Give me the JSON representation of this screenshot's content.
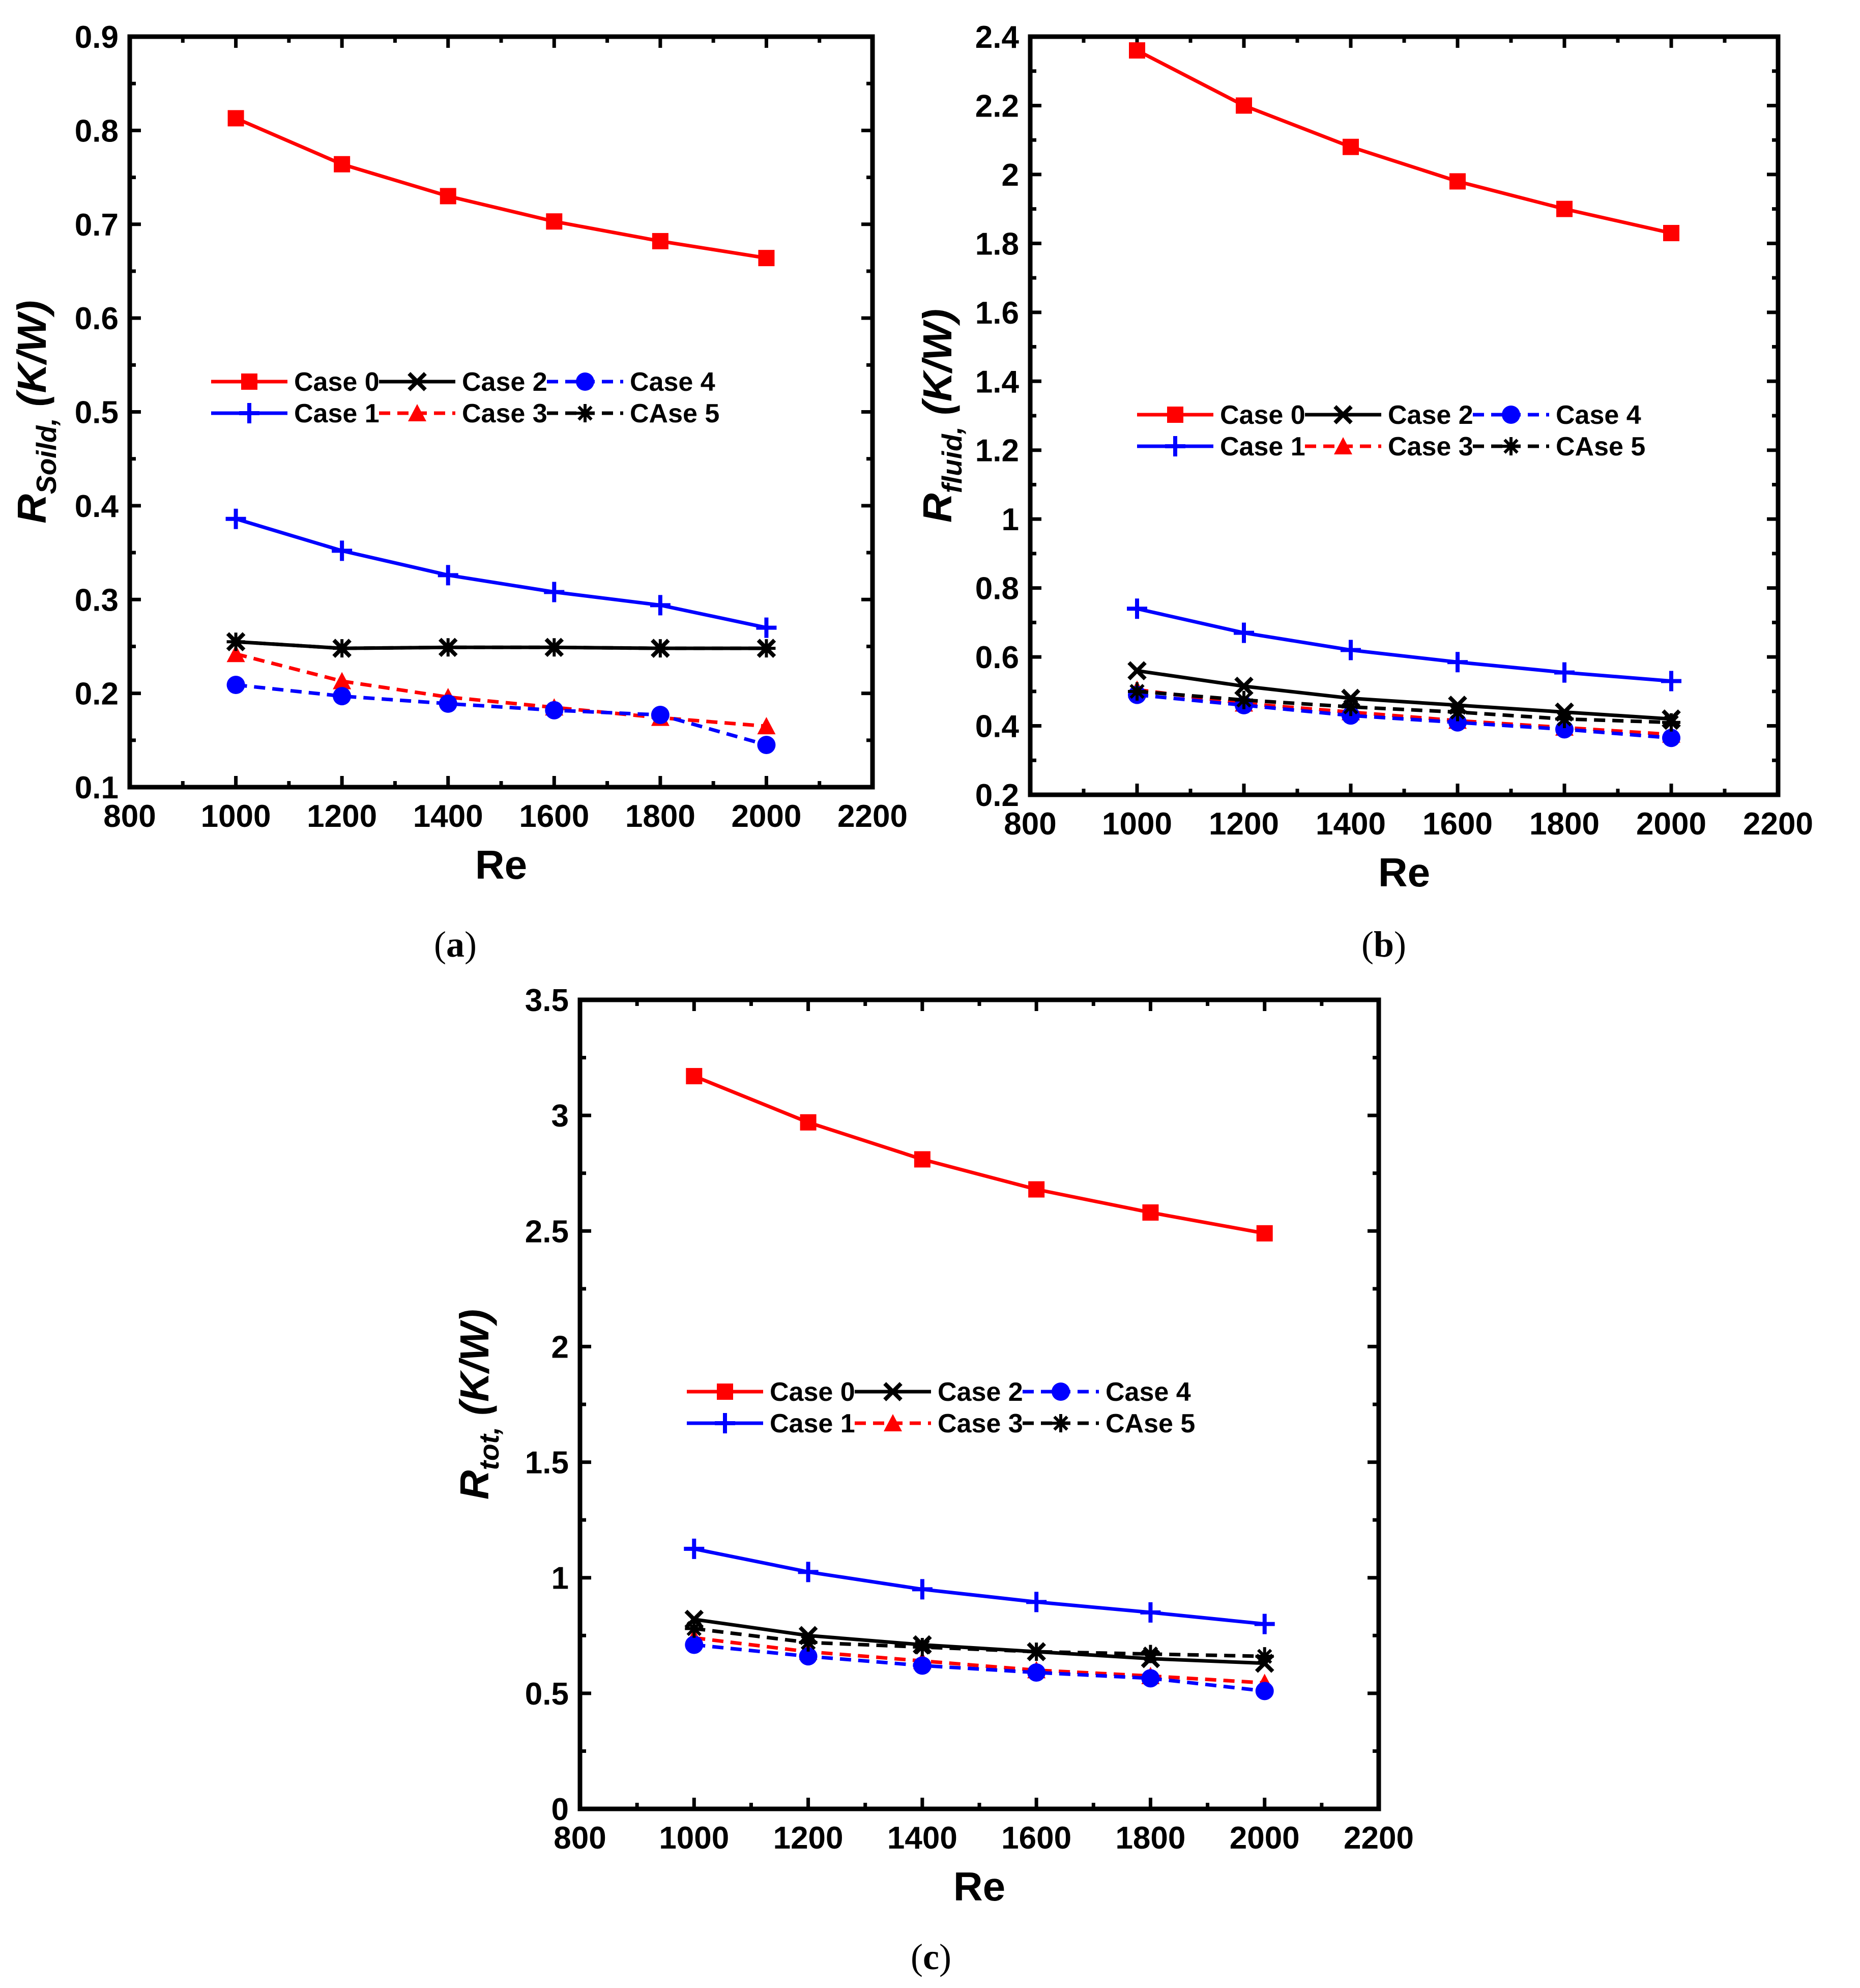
{
  "chart_data": [
    {
      "type": "line",
      "panel": "(a)",
      "caption_letter": "a",
      "ylabel_main": "R",
      "ylabel_sub": "Soild,",
      "ylabel_unit": " (K/W)",
      "xlabel": "Re",
      "xlim": [
        800,
        2200
      ],
      "ylim": [
        0.1,
        0.9
      ],
      "xticks": [
        800,
        1000,
        1200,
        1400,
        1600,
        1800,
        2000,
        2200
      ],
      "yticks": [
        0.1,
        0.2,
        0.3,
        0.4,
        0.5,
        0.6,
        0.7,
        0.8,
        0.9
      ],
      "ytick_labels": [
        "0.1",
        "0.2",
        "0.3",
        "0.4",
        "0.5",
        "0.6",
        "0.7",
        "0.8",
        "0.9"
      ],
      "x": [
        1000,
        1200,
        1400,
        1600,
        1800,
        2000
      ],
      "series": [
        {
          "name": "Case 0",
          "values": [
            0.813,
            0.764,
            0.73,
            0.703,
            0.682,
            0.664
          ]
        },
        {
          "name": "Case 1",
          "values": [
            0.386,
            0.352,
            0.326,
            0.308,
            0.294,
            0.27
          ]
        },
        {
          "name": "Case 2",
          "values": [
            0.255,
            0.248,
            0.249,
            0.249,
            0.248,
            0.248
          ]
        },
        {
          "name": "Case 3",
          "values": [
            0.242,
            0.213,
            0.196,
            0.185,
            0.174,
            0.165
          ]
        },
        {
          "name": "Case 4",
          "values": [
            0.209,
            0.197,
            0.189,
            0.182,
            0.177,
            0.145
          ]
        },
        {
          "name": "CAse 5",
          "values": [
            0.255,
            0.248,
            0.249,
            0.249,
            0.248,
            0.248
          ]
        }
      ],
      "legend_position": "center"
    },
    {
      "type": "line",
      "panel": "(b)",
      "caption_letter": "b",
      "ylabel_main": "R",
      "ylabel_sub": "fluid,",
      "ylabel_unit": " (K/W)",
      "xlabel": "Re",
      "xlim": [
        800,
        2200
      ],
      "ylim": [
        0.2,
        2.4
      ],
      "xticks": [
        800,
        1000,
        1200,
        1400,
        1600,
        1800,
        2000,
        2200
      ],
      "yticks": [
        0.2,
        0.4,
        0.6,
        0.8,
        1.0,
        1.2,
        1.4,
        1.6,
        1.8,
        2.0,
        2.2,
        2.4
      ],
      "ytick_labels": [
        "0.2",
        "0.4",
        "0.6",
        "0.8",
        "1",
        "1.2",
        "1.4",
        "1.6",
        "1.8",
        "2",
        "2.2",
        "2.4"
      ],
      "x": [
        1000,
        1200,
        1400,
        1600,
        1800,
        2000
      ],
      "series": [
        {
          "name": "Case 0",
          "values": [
            2.36,
            2.2,
            2.08,
            1.98,
            1.9,
            1.83
          ]
        },
        {
          "name": "Case 1",
          "values": [
            0.74,
            0.67,
            0.62,
            0.585,
            0.555,
            0.53
          ]
        },
        {
          "name": "Case 2",
          "values": [
            0.56,
            0.515,
            0.48,
            0.46,
            0.44,
            0.42
          ]
        },
        {
          "name": "Case 3",
          "values": [
            0.505,
            0.465,
            0.44,
            0.415,
            0.395,
            0.375
          ]
        },
        {
          "name": "Case 4",
          "values": [
            0.49,
            0.46,
            0.43,
            0.41,
            0.39,
            0.365
          ]
        },
        {
          "name": "CAse 5",
          "values": [
            0.5,
            0.475,
            0.455,
            0.44,
            0.42,
            0.41
          ]
        }
      ],
      "legend_position": "center"
    },
    {
      "type": "line",
      "panel": "(c)",
      "caption_letter": "c",
      "ylabel_main": "R",
      "ylabel_sub": "tot,",
      "ylabel_unit": " (K/W)",
      "xlabel": "Re",
      "xlim": [
        800,
        2200
      ],
      "ylim": [
        0,
        3.5
      ],
      "xticks": [
        800,
        1000,
        1200,
        1400,
        1600,
        1800,
        2000,
        2200
      ],
      "yticks": [
        0,
        0.5,
        1.0,
        1.5,
        2.0,
        2.5,
        3.0,
        3.5
      ],
      "ytick_labels": [
        "0",
        "0.5",
        "1",
        "1.5",
        "2",
        "2.5",
        "3",
        "3.5"
      ],
      "x": [
        1000,
        1200,
        1400,
        1600,
        1800,
        2000
      ],
      "series": [
        {
          "name": "Case 0",
          "values": [
            3.17,
            2.97,
            2.81,
            2.68,
            2.58,
            2.49
          ]
        },
        {
          "name": "Case 1",
          "values": [
            1.125,
            1.025,
            0.95,
            0.895,
            0.85,
            0.8
          ]
        },
        {
          "name": "Case 2",
          "values": [
            0.82,
            0.75,
            0.71,
            0.68,
            0.65,
            0.63
          ]
        },
        {
          "name": "Case 3",
          "values": [
            0.74,
            0.68,
            0.64,
            0.6,
            0.575,
            0.545
          ]
        },
        {
          "name": "Case 4",
          "values": [
            0.71,
            0.66,
            0.62,
            0.59,
            0.565,
            0.51
          ]
        },
        {
          "name": "CAse 5",
          "values": [
            0.78,
            0.72,
            0.7,
            0.68,
            0.67,
            0.66
          ]
        }
      ],
      "legend_position": "center"
    }
  ],
  "series_styles": [
    {
      "name": "Case 0",
      "color": "#ff0000",
      "marker": "square",
      "dash": "solid"
    },
    {
      "name": "Case 1",
      "color": "#0000ff",
      "marker": "plus",
      "dash": "solid"
    },
    {
      "name": "Case 2",
      "color": "#000000",
      "marker": "cross",
      "dash": "solid"
    },
    {
      "name": "Case 3",
      "color": "#ff0000",
      "marker": "triangle",
      "dash": "dashed"
    },
    {
      "name": "Case 4",
      "color": "#0000ff",
      "marker": "circle",
      "dash": "dashed"
    },
    {
      "name": "CAse 5",
      "color": "#000000",
      "marker": "star",
      "dash": "dashed"
    }
  ]
}
